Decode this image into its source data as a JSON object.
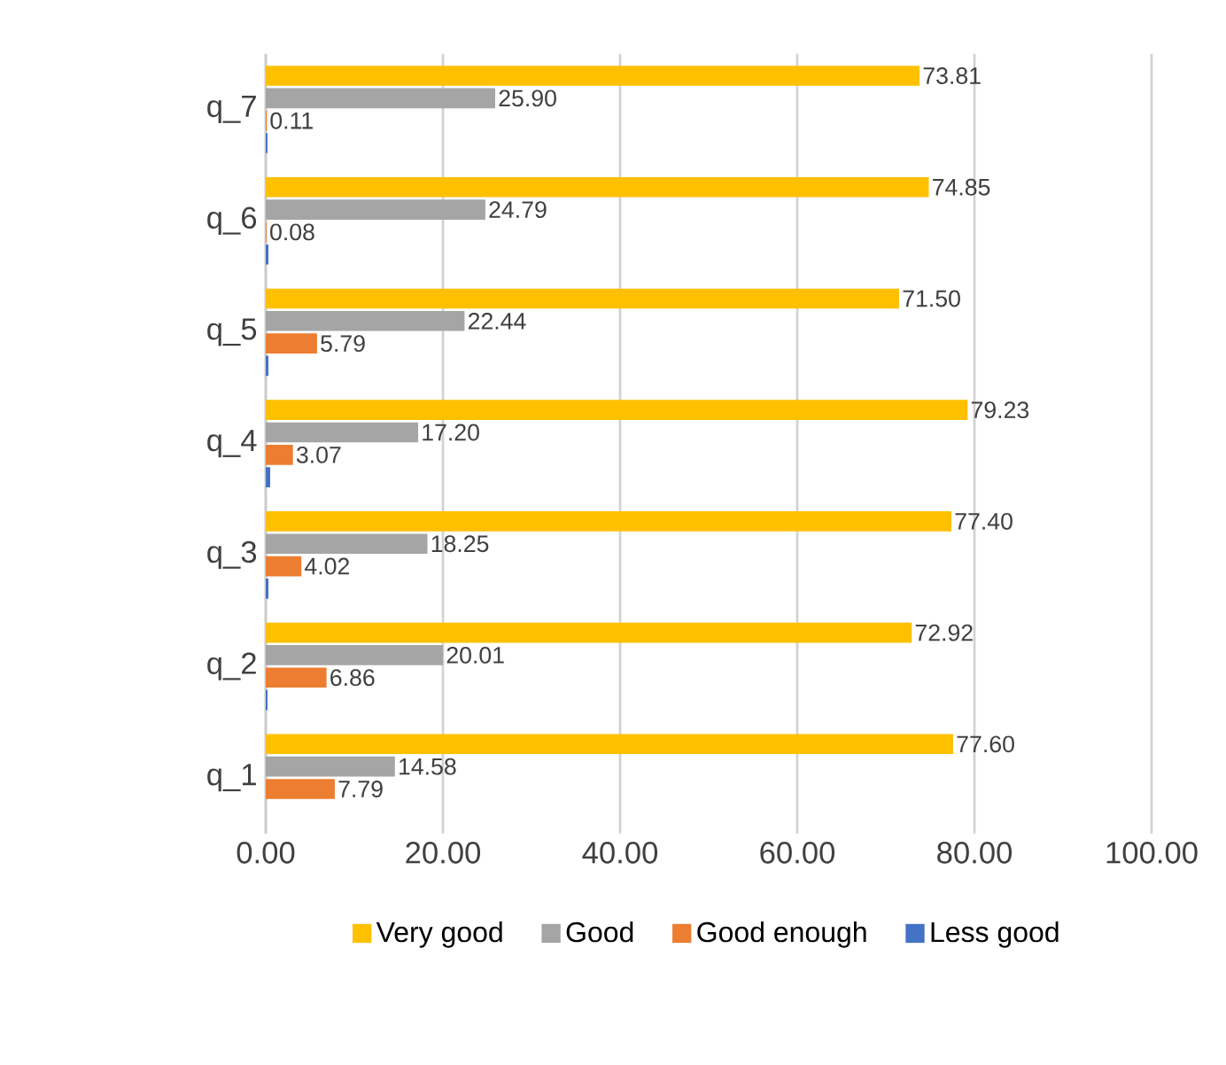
{
  "chart_data": {
    "type": "bar",
    "orientation": "horizontal",
    "categories": [
      "q_7",
      "q_6",
      "q_5",
      "q_4",
      "q_3",
      "q_2",
      "q_1"
    ],
    "series": [
      {
        "name": "Very good",
        "color": "#ffc000",
        "values": [
          73.81,
          74.85,
          71.5,
          79.23,
          77.4,
          72.92,
          77.6
        ],
        "value_labels": [
          "73.81",
          "74.85",
          "71.50",
          "79.23",
          "77.40",
          "72.92",
          "77.60"
        ]
      },
      {
        "name": "Good",
        "color": "#a5a5a5",
        "values": [
          25.9,
          24.79,
          22.44,
          17.2,
          18.25,
          20.01,
          14.58
        ],
        "value_labels": [
          "25.90",
          "24.79",
          "22.44",
          "17.20",
          "18.25",
          "20.01",
          "14.58"
        ]
      },
      {
        "name": "Good enough",
        "color": "#ed7d31",
        "values": [
          0.11,
          0.08,
          5.79,
          3.07,
          4.02,
          6.86,
          7.79
        ],
        "value_labels": [
          "0.11",
          "0.08",
          "5.79",
          "3.07",
          "4.02",
          "6.86",
          "7.79"
        ]
      },
      {
        "name": "Less good",
        "color": "#4472c4",
        "values": [
          0.2,
          0.3,
          0.3,
          0.5,
          0.3,
          0.2,
          null
        ],
        "value_labels": [
          null,
          null,
          null,
          null,
          null,
          null,
          null
        ]
      }
    ],
    "xlim": [
      0,
      100
    ],
    "xticks": [
      {
        "value": 0,
        "label": "0.00"
      },
      {
        "value": 20,
        "label": "20.00"
      },
      {
        "value": 40,
        "label": "40.00"
      },
      {
        "value": 60,
        "label": "60.00"
      },
      {
        "value": 80,
        "label": "80.00"
      },
      {
        "value": 100,
        "label": "100.00"
      }
    ],
    "grid": "x",
    "legend": "bottom"
  }
}
